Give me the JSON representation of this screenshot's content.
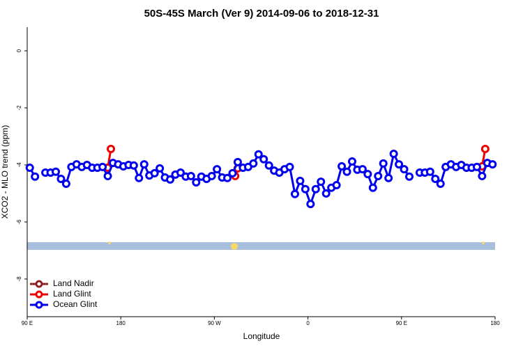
{
  "chart_data": {
    "type": "line",
    "title": "50S-45S March (Ver 9)   2014-09-06 to 2018-12-31",
    "x_label": "Longitude",
    "y_label": "XCO2 - MLO trend (ppm)",
    "xlim": [
      90,
      540
    ],
    "ylim": [
      -9.32,
      0.83
    ],
    "xticks": [
      {
        "value": 90,
        "label": "90 E"
      },
      {
        "value": 180,
        "label": "180"
      },
      {
        "value": 270,
        "label": "90 W"
      },
      {
        "value": 360,
        "label": "0"
      },
      {
        "value": 450,
        "label": "90 E"
      },
      {
        "value": 540,
        "label": "180"
      }
    ],
    "yticks": [
      0,
      -2,
      -4,
      -6,
      -8
    ],
    "legend": "bottomleft",
    "series": [
      {
        "name": "Land Nadir",
        "color": "#8b2323",
        "x": [],
        "values": []
      },
      {
        "name": "Land Glint",
        "color": "#ee0000",
        "x": [
          167.5,
          170.5,
          null,
          290,
          292.5,
          null,
          527.5,
          530.5
        ],
        "values": [
          -4.1,
          -3.44,
          null,
          -4.39,
          -4.12,
          null,
          -4.05,
          -3.44
        ]
      },
      {
        "name": "Ocean Glint",
        "color": "#0000ee",
        "x": [
          92.5,
          97.5,
          null,
          107.5,
          112.5,
          117.5,
          122.5,
          127.5,
          132.5,
          137.5,
          142.5,
          147.5,
          152.5,
          157.5,
          162.5,
          167.5,
          172.5,
          177.5,
          182.5,
          187.5,
          192.5,
          197.5,
          202.5,
          207.5,
          212.5,
          217.5,
          222.5,
          227.5,
          232.5,
          237.5,
          242.5,
          247.5,
          252.5,
          257.5,
          262.5,
          267.5,
          272.5,
          277.5,
          282.5,
          287.5,
          292.5,
          297.5,
          302.5,
          307.5,
          312.5,
          317.5,
          322.5,
          327.5,
          332.5,
          337.5,
          342.5,
          347.5,
          352.5,
          357.5,
          362.5,
          367.5,
          372.5,
          377.5,
          382.5,
          387.5,
          392.5,
          397.5,
          402.5,
          407.5,
          412.5,
          417.5,
          422.5,
          427.5,
          432.5,
          437.5,
          442.5,
          447.5,
          452.5,
          457.5,
          null,
          467.5,
          472.5,
          477.5,
          482.5,
          487.5,
          492.5,
          497.5,
          502.5,
          507.5,
          512.5,
          517.5,
          522.5,
          527.5,
          532.5,
          537.5
        ],
        "values": [
          -4.1,
          -4.41,
          null,
          -4.27,
          -4.27,
          -4.24,
          -4.49,
          -4.66,
          -4.07,
          -3.98,
          -4.07,
          -4.0,
          -4.1,
          -4.1,
          -4.07,
          -4.39,
          -3.93,
          -3.98,
          -4.05,
          -4.0,
          -4.02,
          -4.46,
          -3.98,
          -4.37,
          -4.29,
          -4.12,
          -4.44,
          -4.51,
          -4.34,
          -4.27,
          -4.41,
          -4.39,
          -4.61,
          -4.41,
          -4.49,
          -4.39,
          -4.15,
          -4.44,
          -4.46,
          -4.29,
          -3.9,
          -4.1,
          -4.07,
          -3.95,
          -3.63,
          -3.8,
          -4.02,
          -4.2,
          -4.27,
          -4.15,
          -4.07,
          -5.02,
          -4.56,
          -4.85,
          -5.37,
          -4.85,
          -4.59,
          -5.0,
          -4.8,
          -4.71,
          -4.05,
          -4.24,
          -3.88,
          -4.17,
          -4.15,
          -4.32,
          -4.8,
          -4.39,
          -3.95,
          -4.46,
          -3.61,
          -3.98,
          -4.15,
          -4.41,
          null,
          -4.27,
          -4.27,
          -4.24,
          -4.49,
          -4.66,
          -4.07,
          -3.98,
          -4.07,
          -4.0,
          -4.1,
          -4.1,
          -4.07,
          -4.39,
          -3.93,
          -3.98
        ]
      }
    ]
  }
}
